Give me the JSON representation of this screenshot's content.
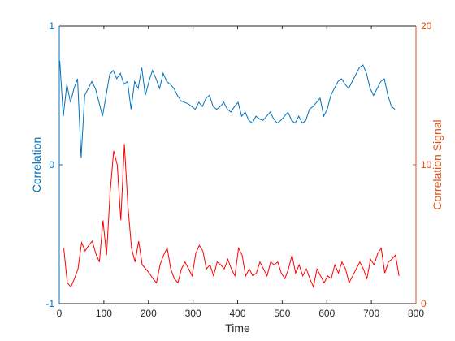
{
  "chart_data": {
    "type": "line",
    "title": "",
    "xlabel": "Time",
    "ylabel_left": "Correlation",
    "ylabel_right": "Correlation Signal",
    "xlim": [
      0,
      800
    ],
    "ylim_left": [
      -1,
      1
    ],
    "ylim_right": [
      0,
      20
    ],
    "xticks": [
      0,
      100,
      200,
      300,
      400,
      500,
      600,
      700,
      800
    ],
    "yticks_left": [
      -1,
      0,
      1
    ],
    "yticks_right": [
      0,
      10,
      20
    ],
    "xtick_labels": [
      "0",
      "100",
      "200",
      "300",
      "400",
      "500",
      "600",
      "700",
      "800"
    ],
    "ytick_labels_left": [
      "-1",
      "0",
      "1"
    ],
    "ytick_labels_right": [
      "0",
      "10",
      "20"
    ],
    "grid": false,
    "legend": "none",
    "series": [
      {
        "axis": "left",
        "color": "#0072BD",
        "x_start": 1,
        "x_step": 8,
        "values": [
          0.75,
          0.35,
          0.58,
          0.45,
          0.55,
          0.62,
          0.05,
          0.5,
          0.55,
          0.6,
          0.55,
          0.45,
          0.35,
          0.5,
          0.65,
          0.68,
          0.62,
          0.66,
          0.58,
          0.6,
          0.4,
          0.6,
          0.55,
          0.7,
          0.5,
          0.6,
          0.68,
          0.62,
          0.55,
          0.66,
          0.6,
          0.58,
          0.55,
          0.5,
          0.46,
          0.45,
          0.44,
          0.42,
          0.4,
          0.45,
          0.42,
          0.48,
          0.5,
          0.42,
          0.4,
          0.42,
          0.45,
          0.4,
          0.38,
          0.42,
          0.45,
          0.35,
          0.38,
          0.32,
          0.3,
          0.35,
          0.33,
          0.32,
          0.35,
          0.38,
          0.33,
          0.3,
          0.32,
          0.35,
          0.38,
          0.32,
          0.3,
          0.35,
          0.3,
          0.32,
          0.4,
          0.42,
          0.45,
          0.48,
          0.35,
          0.4,
          0.5,
          0.55,
          0.6,
          0.62,
          0.58,
          0.55,
          0.6,
          0.65,
          0.7,
          0.72,
          0.66,
          0.55,
          0.5,
          0.55,
          0.6,
          0.62,
          0.5,
          0.42,
          0.4
        ]
      },
      {
        "axis": "right",
        "color": "#FF0000",
        "x_start": 10,
        "x_step": 8,
        "values": [
          4.0,
          1.5,
          1.2,
          1.8,
          2.5,
          4.4,
          3.8,
          4.2,
          4.5,
          3.6,
          3.0,
          6.0,
          3.5,
          8.0,
          11.0,
          10.0,
          6.0,
          11.5,
          7.0,
          4.0,
          3.0,
          4.5,
          2.8,
          2.5,
          2.2,
          1.8,
          1.5,
          2.8,
          3.5,
          4.0,
          2.5,
          1.8,
          1.5,
          2.5,
          3.0,
          2.5,
          2.0,
          3.6,
          4.2,
          3.8,
          2.5,
          2.8,
          2.0,
          3.0,
          2.8,
          2.5,
          3.2,
          2.5,
          2.0,
          4.0,
          3.5,
          2.0,
          2.5,
          2.0,
          2.2,
          3.0,
          2.5,
          2.0,
          3.0,
          2.8,
          3.0,
          2.2,
          1.8,
          2.5,
          3.5,
          2.2,
          2.8,
          2.0,
          2.5,
          1.8,
          1.2,
          2.5,
          2.0,
          1.5,
          2.0,
          1.8,
          2.8,
          2.2,
          3.0,
          2.5,
          1.5,
          2.0,
          2.5,
          3.0,
          2.5,
          1.8,
          3.2,
          2.8,
          3.6,
          4.0,
          2.2,
          3.0,
          3.2,
          3.5,
          2.0
        ]
      }
    ]
  },
  "colors": {
    "left_axis": "#0072BD",
    "right_axis": "#D95319",
    "axis_black": "#262626"
  }
}
